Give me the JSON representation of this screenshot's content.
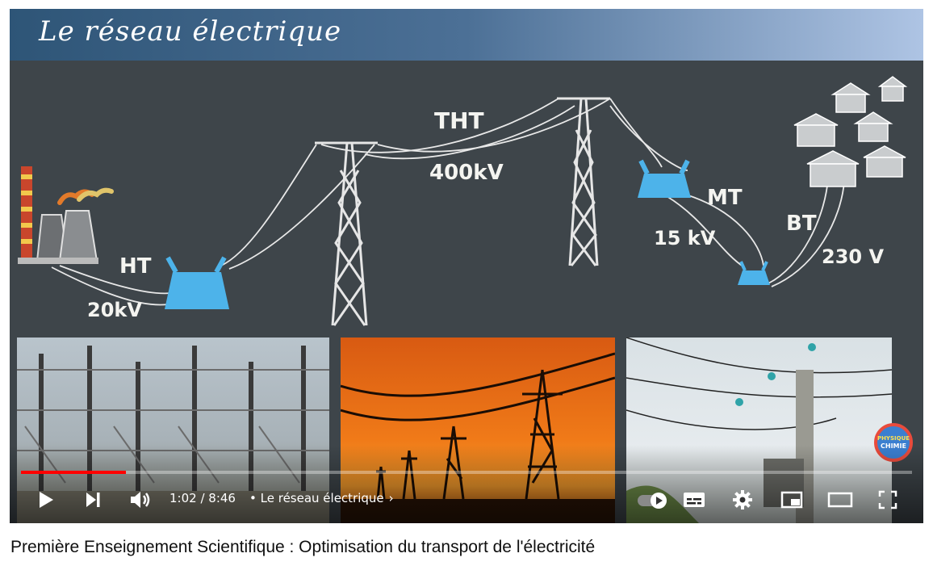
{
  "slide": {
    "title": "Le réseau électrique",
    "labels": {
      "ht": "HT",
      "ht_voltage": "20kV",
      "tht": "THT",
      "tht_voltage": "400kV",
      "mt": "MT",
      "mt_voltage": "15 kV",
      "bt": "BT",
      "bt_voltage": "230 V"
    }
  },
  "player": {
    "current_time": "1:02",
    "duration": "8:46",
    "time_separator": " / ",
    "chapter_separator": "•",
    "chapter": "Le réseau électrique",
    "progress_fraction": 0.118,
    "accent_color": "#ff0000",
    "icons": [
      "play-icon",
      "next-icon",
      "volume-icon",
      "autoplay-toggle-icon",
      "subtitles-icon",
      "settings-icon",
      "miniplayer-icon",
      "theater-icon",
      "fullscreen-icon"
    ]
  },
  "badge": {
    "line1": "PHYSIQUE",
    "line2": "CHIMIE"
  },
  "video": {
    "title": "Première Enseignement Scientifique : Optimisation du transport de l'électricité"
  }
}
